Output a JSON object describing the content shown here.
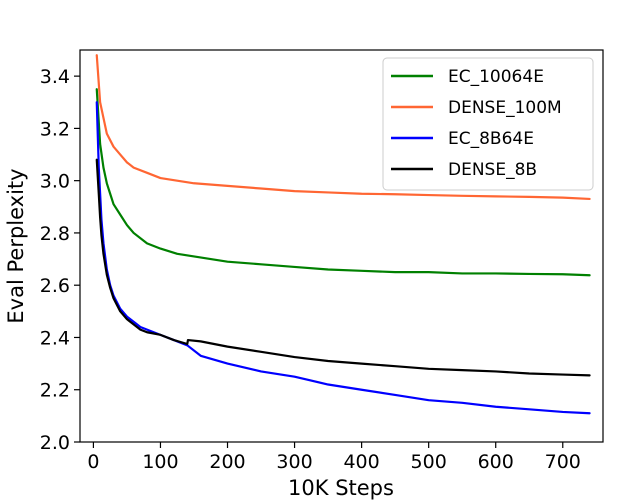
{
  "chart_data": {
    "type": "line",
    "title": "",
    "xlabel": "10K Steps",
    "ylabel": "Eval Perplexity",
    "xlim": [
      -20,
      760
    ],
    "ylim": [
      2.0,
      3.5
    ],
    "xticks": [
      0,
      100,
      200,
      300,
      400,
      500,
      600,
      700
    ],
    "xtick_labels": [
      "0",
      "100",
      "200",
      "300",
      "400",
      "500",
      "600",
      "700"
    ],
    "yticks": [
      2.0,
      2.2,
      2.4,
      2.6,
      2.8,
      3.0,
      3.2,
      3.4
    ],
    "ytick_labels": [
      "2.0",
      "2.2",
      "2.4",
      "2.6",
      "2.8",
      "3.0",
      "3.2",
      "3.4"
    ],
    "grid": false,
    "legend_position": "top-right",
    "series": [
      {
        "name": "EC_10064E",
        "color": "#008000",
        "points": [
          [
            5,
            3.35
          ],
          [
            10,
            3.14
          ],
          [
            15,
            3.05
          ],
          [
            20,
            2.99
          ],
          [
            25,
            2.95
          ],
          [
            30,
            2.91
          ],
          [
            40,
            2.87
          ],
          [
            50,
            2.83
          ],
          [
            60,
            2.8
          ],
          [
            80,
            2.76
          ],
          [
            100,
            2.74
          ],
          [
            125,
            2.72
          ],
          [
            150,
            2.71
          ],
          [
            200,
            2.69
          ],
          [
            250,
            2.68
          ],
          [
            300,
            2.67
          ],
          [
            350,
            2.66
          ],
          [
            400,
            2.655
          ],
          [
            450,
            2.65
          ],
          [
            500,
            2.65
          ],
          [
            550,
            2.645
          ],
          [
            600,
            2.645
          ],
          [
            650,
            2.643
          ],
          [
            700,
            2.642
          ],
          [
            740,
            2.638
          ]
        ]
      },
      {
        "name": "DENSE_100M",
        "color": "#ff6633",
        "points": [
          [
            5,
            3.48
          ],
          [
            10,
            3.3
          ],
          [
            15,
            3.24
          ],
          [
            20,
            3.18
          ],
          [
            30,
            3.13
          ],
          [
            40,
            3.1
          ],
          [
            50,
            3.07
          ],
          [
            60,
            3.05
          ],
          [
            80,
            3.03
          ],
          [
            100,
            3.01
          ],
          [
            125,
            3.0
          ],
          [
            150,
            2.99
          ],
          [
            200,
            2.98
          ],
          [
            250,
            2.97
          ],
          [
            300,
            2.96
          ],
          [
            350,
            2.955
          ],
          [
            400,
            2.95
          ],
          [
            450,
            2.948
          ],
          [
            500,
            2.945
          ],
          [
            550,
            2.942
          ],
          [
            600,
            2.94
          ],
          [
            650,
            2.938
          ],
          [
            700,
            2.935
          ],
          [
            740,
            2.93
          ]
        ]
      },
      {
        "name": "EC_8B64E",
        "color": "#0000ff",
        "points": [
          [
            5,
            3.3
          ],
          [
            8,
            3.05
          ],
          [
            10,
            2.95
          ],
          [
            12,
            2.85
          ],
          [
            15,
            2.76
          ],
          [
            20,
            2.66
          ],
          [
            25,
            2.6
          ],
          [
            30,
            2.56
          ],
          [
            40,
            2.51
          ],
          [
            50,
            2.48
          ],
          [
            60,
            2.46
          ],
          [
            70,
            2.44
          ],
          [
            80,
            2.43
          ],
          [
            100,
            2.41
          ],
          [
            120,
            2.39
          ],
          [
            140,
            2.37
          ],
          [
            160,
            2.33
          ],
          [
            200,
            2.3
          ],
          [
            250,
            2.27
          ],
          [
            300,
            2.25
          ],
          [
            350,
            2.22
          ],
          [
            400,
            2.2
          ],
          [
            450,
            2.18
          ],
          [
            500,
            2.16
          ],
          [
            550,
            2.15
          ],
          [
            600,
            2.135
          ],
          [
            650,
            2.125
          ],
          [
            700,
            2.115
          ],
          [
            740,
            2.11
          ]
        ]
      },
      {
        "name": "DENSE_8B",
        "color": "#000000",
        "points": [
          [
            5,
            3.08
          ],
          [
            8,
            2.95
          ],
          [
            10,
            2.86
          ],
          [
            12,
            2.79
          ],
          [
            15,
            2.72
          ],
          [
            20,
            2.64
          ],
          [
            25,
            2.59
          ],
          [
            30,
            2.55
          ],
          [
            40,
            2.5
          ],
          [
            50,
            2.47
          ],
          [
            60,
            2.45
          ],
          [
            70,
            2.43
          ],
          [
            80,
            2.42
          ],
          [
            100,
            2.41
          ],
          [
            120,
            2.39
          ],
          [
            140,
            2.375
          ],
          [
            141,
            2.39
          ],
          [
            160,
            2.385
          ],
          [
            200,
            2.365
          ],
          [
            250,
            2.345
          ],
          [
            300,
            2.325
          ],
          [
            350,
            2.31
          ],
          [
            400,
            2.3
          ],
          [
            450,
            2.29
          ],
          [
            500,
            2.28
          ],
          [
            550,
            2.275
          ],
          [
            600,
            2.27
          ],
          [
            650,
            2.262
          ],
          [
            700,
            2.258
          ],
          [
            740,
            2.255
          ]
        ]
      }
    ]
  }
}
